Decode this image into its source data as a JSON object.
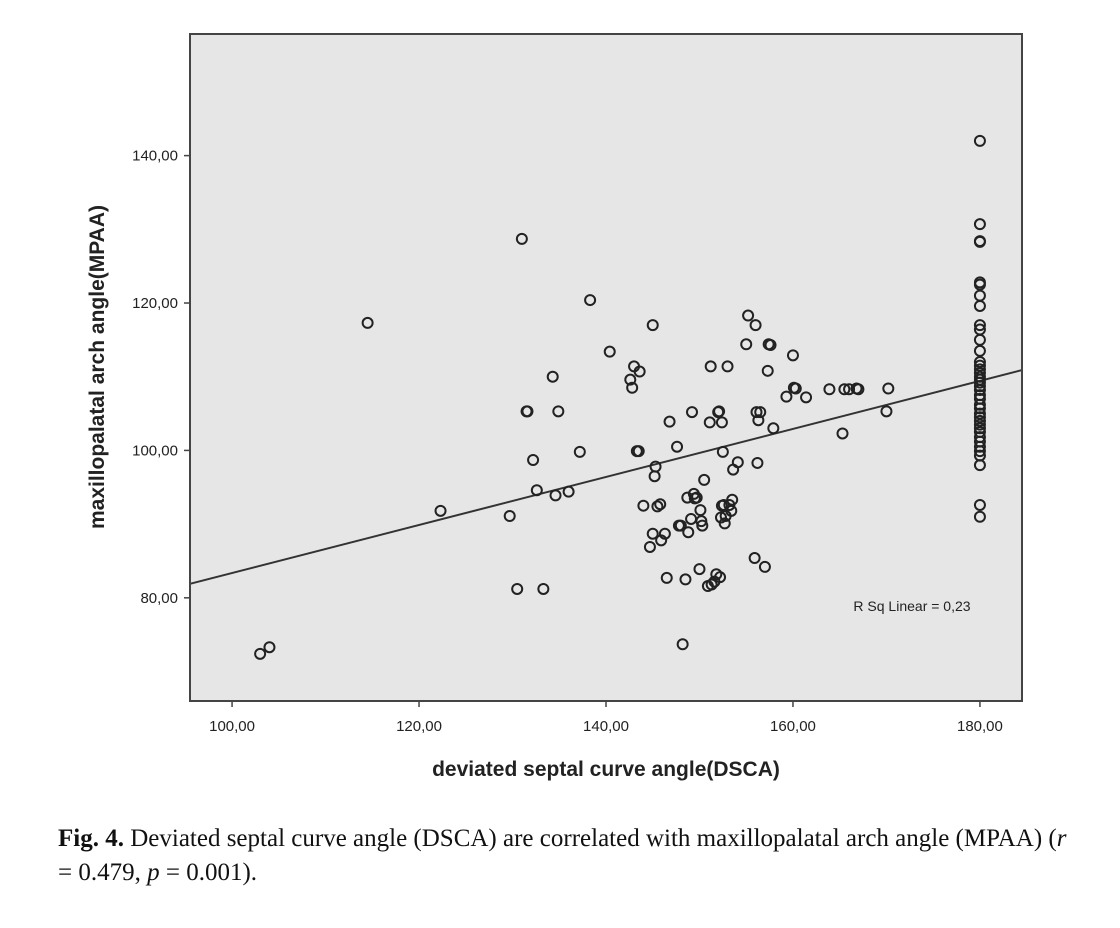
{
  "chart_data": {
    "type": "scatter",
    "xlabel": "deviated septal curve angle(DSCA)",
    "ylabel": "maxillopalatal arch angle(MPAA)",
    "xlim": [
      95.5,
      184.5
    ],
    "ylim": [
      66,
      156.5
    ],
    "xticks": [
      "100,00",
      "120,00",
      "140,00",
      "160,00",
      "180,00"
    ],
    "yticks": [
      "80,00",
      "100,00",
      "120,00",
      "140,00"
    ],
    "xtick_values": [
      100,
      120,
      140,
      160,
      180
    ],
    "ytick_values": [
      80,
      100,
      120,
      140
    ],
    "grid": false,
    "fit_line": {
      "type": "linear",
      "x": [
        95.5,
        184.5
      ],
      "y": [
        81.9,
        110.9
      ]
    },
    "annotation": "R Sq Linear = 0,23",
    "points": [
      [
        103,
        72.4
      ],
      [
        104,
        73.3
      ],
      [
        114.5,
        117.3
      ],
      [
        122.3,
        91.8
      ],
      [
        129.7,
        91.1
      ],
      [
        130.5,
        81.2
      ],
      [
        131,
        128.7
      ],
      [
        131.5,
        105.3
      ],
      [
        131.6,
        105.3
      ],
      [
        132.2,
        98.7
      ],
      [
        132.6,
        94.6
      ],
      [
        133.3,
        81.2
      ],
      [
        134.3,
        110
      ],
      [
        134.6,
        93.9
      ],
      [
        134.9,
        105.3
      ],
      [
        136,
        94.4
      ],
      [
        137.2,
        99.8
      ],
      [
        138.3,
        120.4
      ],
      [
        140.4,
        113.4
      ],
      [
        142.6,
        109.6
      ],
      [
        142.8,
        108.5
      ],
      [
        143,
        111.4
      ],
      [
        143.3,
        99.9
      ],
      [
        143.5,
        99.9
      ],
      [
        143.6,
        110.7
      ],
      [
        144,
        92.5
      ],
      [
        144.7,
        86.9
      ],
      [
        145,
        88.7
      ],
      [
        145,
        117
      ],
      [
        145.2,
        96.5
      ],
      [
        145.3,
        97.8
      ],
      [
        145.5,
        92.4
      ],
      [
        145.8,
        92.7
      ],
      [
        145.9,
        87.8
      ],
      [
        146.3,
        88.7
      ],
      [
        146.5,
        82.7
      ],
      [
        146.8,
        103.9
      ],
      [
        147.6,
        100.5
      ],
      [
        147.8,
        89.8
      ],
      [
        148,
        89.8
      ],
      [
        148.2,
        73.7
      ],
      [
        148.5,
        82.5
      ],
      [
        148.7,
        93.6
      ],
      [
        148.8,
        88.9
      ],
      [
        149.1,
        90.7
      ],
      [
        149.2,
        105.2
      ],
      [
        149.4,
        94.1
      ],
      [
        149.5,
        93.5
      ],
      [
        149.7,
        93.6
      ],
      [
        150,
        83.9
      ],
      [
        150.1,
        91.9
      ],
      [
        150.2,
        90.4
      ],
      [
        150.3,
        89.8
      ],
      [
        150.5,
        96
      ],
      [
        150.9,
        81.6
      ],
      [
        151.1,
        103.8
      ],
      [
        151.2,
        111.4
      ],
      [
        151.3,
        81.8
      ],
      [
        151.6,
        82.2
      ],
      [
        151.8,
        83.2
      ],
      [
        152,
        105.2
      ],
      [
        152.1,
        105.3
      ],
      [
        152.2,
        82.8
      ],
      [
        152.3,
        90.9
      ],
      [
        152.4,
        92.5
      ],
      [
        152.4,
        103.8
      ],
      [
        152.5,
        99.8
      ],
      [
        152.6,
        92.6
      ],
      [
        152.7,
        90.1
      ],
      [
        152.8,
        91.1
      ],
      [
        153,
        111.4
      ],
      [
        153.2,
        92.6
      ],
      [
        153.4,
        91.8
      ],
      [
        153.5,
        93.3
      ],
      [
        153.6,
        97.4
      ],
      [
        154.1,
        98.4
      ],
      [
        155,
        114.4
      ],
      [
        155.2,
        118.3
      ],
      [
        155.9,
        85.4
      ],
      [
        156,
        117
      ],
      [
        156.1,
        105.2
      ],
      [
        156.2,
        98.3
      ],
      [
        156.3,
        104.1
      ],
      [
        156.5,
        105.2
      ],
      [
        157,
        84.2
      ],
      [
        157.3,
        110.8
      ],
      [
        157.4,
        114.4
      ],
      [
        157.6,
        114.3
      ],
      [
        157.9,
        103
      ],
      [
        159.3,
        107.3
      ],
      [
        160,
        112.9
      ],
      [
        160.1,
        108.5
      ],
      [
        160.3,
        108.4
      ],
      [
        161.4,
        107.2
      ],
      [
        163.9,
        108.3
      ],
      [
        165.3,
        102.3
      ],
      [
        165.5,
        108.3
      ],
      [
        166,
        108.3
      ],
      [
        166.8,
        108.4
      ],
      [
        167,
        108.3
      ],
      [
        170,
        105.3
      ],
      [
        170.2,
        108.4
      ],
      [
        180,
        142
      ],
      [
        180,
        130.7
      ],
      [
        180,
        128.4
      ],
      [
        180,
        128.3
      ],
      [
        180,
        122.8
      ],
      [
        180,
        122.5
      ],
      [
        180,
        121
      ],
      [
        180,
        119.6
      ],
      [
        180,
        117
      ],
      [
        180,
        116.4
      ],
      [
        180,
        115
      ],
      [
        180,
        113.5
      ],
      [
        180,
        112
      ],
      [
        180,
        111.5
      ],
      [
        180,
        111
      ],
      [
        180,
        110.5
      ],
      [
        180,
        110
      ],
      [
        180,
        109.6
      ],
      [
        180,
        109.2
      ],
      [
        180,
        108.7
      ],
      [
        180,
        108.2
      ],
      [
        180,
        107.5
      ],
      [
        180,
        107
      ],
      [
        180,
        106.2
      ],
      [
        180,
        105.7
      ],
      [
        180,
        105
      ],
      [
        180,
        104.5
      ],
      [
        180,
        104
      ],
      [
        180,
        103.5
      ],
      [
        180,
        103
      ],
      [
        180,
        102.5
      ],
      [
        180,
        101.8
      ],
      [
        180,
        101.2
      ],
      [
        180,
        100.5
      ],
      [
        180,
        99.9
      ],
      [
        180,
        99.3
      ],
      [
        180,
        98
      ],
      [
        180,
        92.6
      ],
      [
        180,
        91
      ]
    ]
  },
  "caption": {
    "label": "Fig. 4.",
    "text_1": " Deviated septal curve angle (DSCA) are correlated with maxillopalatal arch angle (MPAA) (",
    "r_symbol": "r",
    "r_text": " = 0.479, ",
    "p_symbol": "p",
    "p_text": " = 0.001)."
  },
  "colors": {
    "plot_background": "#e6e6e6",
    "frame": "#444444",
    "marker": "#222222",
    "fit_line": "#333333"
  }
}
